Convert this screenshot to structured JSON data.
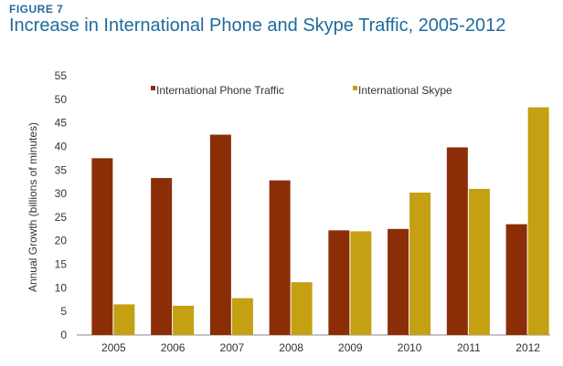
{
  "figure_label": "FIGURE 7",
  "chart_data": {
    "type": "bar",
    "title": "Increase in International Phone and Skype Traffic, 2005-2012",
    "xlabel": "",
    "ylabel": "Annual Growth (billions of minutes)",
    "ylim": [
      0,
      55
    ],
    "yticks": [
      0,
      5,
      10,
      15,
      20,
      25,
      30,
      35,
      40,
      45,
      50,
      55
    ],
    "grid": false,
    "legend_position": "top",
    "categories": [
      "2005",
      "2006",
      "2007",
      "2008",
      "2009",
      "2010",
      "2011",
      "2012"
    ],
    "series": [
      {
        "name": "International Phone Traffic",
        "color": "#8b2e08",
        "values": [
          37.5,
          33.3,
          42.5,
          32.8,
          22.2,
          22.5,
          39.8,
          23.5
        ]
      },
      {
        "name": "International Skype",
        "color": "#c4a012",
        "values": [
          6.5,
          6.2,
          7.8,
          11.2,
          22.0,
          30.2,
          31.0,
          48.3
        ]
      }
    ]
  }
}
